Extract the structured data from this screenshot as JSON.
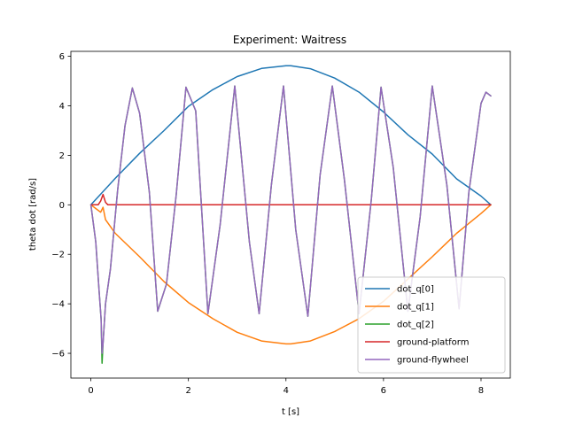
{
  "chart_data": {
    "type": "line",
    "title": "Experiment: Waitress",
    "xlabel": "t [s]",
    "ylabel": "theta dot [rad/s]",
    "xlim": [
      -0.41,
      8.6
    ],
    "ylim": [
      -7.0,
      6.2
    ],
    "xticks": [
      0,
      2,
      4,
      6,
      8
    ],
    "yticks": [
      -6,
      -4,
      -2,
      0,
      2,
      4,
      6
    ],
    "ytick_labels": [
      "−6",
      "−4",
      "−2",
      "0",
      "2",
      "4",
      "6"
    ],
    "grid": false,
    "legend": "lower-right",
    "series": [
      {
        "name": "dot_q[0]",
        "color": "#1f77b4",
        "x": [
          0,
          0.5,
          1.0,
          1.5,
          2.0,
          2.5,
          3.0,
          3.5,
          4.0,
          4.1,
          4.5,
          5.0,
          5.5,
          6.0,
          6.5,
          7.0,
          7.5,
          8.0,
          8.2
        ],
        "y": [
          0,
          1.07,
          2.08,
          3.0,
          3.98,
          4.65,
          5.18,
          5.51,
          5.62,
          5.62,
          5.5,
          5.12,
          4.55,
          3.75,
          2.83,
          2.05,
          1.05,
          0.35,
          0
        ]
      },
      {
        "name": "dot_q[1]",
        "color": "#ff7f0e",
        "x": [
          0,
          0.1,
          0.2,
          0.25,
          0.3,
          0.5,
          1.0,
          1.5,
          2.0,
          2.5,
          3.0,
          3.5,
          4.0,
          4.1,
          4.5,
          5.0,
          5.5,
          6.0,
          6.5,
          7.0,
          7.5,
          8.0,
          8.2
        ],
        "y": [
          0,
          -0.15,
          -0.3,
          -0.1,
          -0.6,
          -1.15,
          -2.1,
          -3.1,
          -3.95,
          -4.6,
          -5.15,
          -5.5,
          -5.62,
          -5.62,
          -5.5,
          -5.12,
          -4.6,
          -3.9,
          -3.0,
          -2.1,
          -1.15,
          -0.35,
          0
        ]
      },
      {
        "name": "dot_q[2]",
        "color": "#2ca02c",
        "x": [
          0,
          0.1,
          0.17,
          0.21,
          0.23,
          0.25,
          0.3,
          0.4,
          0.55,
          0.7,
          0.85,
          1.0,
          1.2,
          1.37,
          1.55,
          1.75,
          1.95,
          2.15,
          2.4,
          2.65,
          2.95,
          3.25,
          3.45,
          3.7,
          3.95,
          4.2,
          4.45,
          4.7,
          4.95,
          5.2,
          5.5,
          5.75,
          5.95,
          6.2,
          6.5,
          6.75,
          7.0,
          7.3,
          7.55,
          7.75,
          8.0,
          8.1,
          8.2
        ],
        "y": [
          0,
          -1.5,
          -3.5,
          -4.6,
          -6.4,
          -5.6,
          -4.0,
          -2.6,
          0.6,
          3.2,
          4.72,
          3.7,
          0.5,
          -4.3,
          -3.2,
          0.4,
          4.75,
          3.8,
          -4.4,
          -0.8,
          4.8,
          -1.5,
          -4.4,
          0.8,
          4.8,
          -1.0,
          -4.5,
          1.2,
          4.8,
          1.0,
          -4.4,
          0.2,
          4.75,
          1.5,
          -4.3,
          -0.5,
          4.8,
          0.8,
          -4.2,
          0.5,
          4.1,
          4.55,
          4.4
        ]
      },
      {
        "name": "ground-platform",
        "color": "#d62728",
        "x": [
          0,
          0.15,
          0.2,
          0.25,
          0.3,
          0.35,
          0.5,
          1.0,
          2.0,
          3.0,
          4.0,
          5.0,
          6.0,
          7.0,
          8.0,
          8.2
        ],
        "y": [
          0,
          0.0,
          0.15,
          0.42,
          0.1,
          0.0,
          0.0,
          0.0,
          0.0,
          0.0,
          0.0,
          0.0,
          0.0,
          0.0,
          0.0,
          0.0
        ]
      },
      {
        "name": "ground-flywheel",
        "color": "#9467bd",
        "x": [
          0,
          0.1,
          0.17,
          0.21,
          0.23,
          0.25,
          0.3,
          0.4,
          0.55,
          0.7,
          0.85,
          1.0,
          1.2,
          1.37,
          1.55,
          1.75,
          1.95,
          2.15,
          2.4,
          2.65,
          2.95,
          3.25,
          3.45,
          3.7,
          3.95,
          4.2,
          4.45,
          4.7,
          4.95,
          5.2,
          5.5,
          5.75,
          5.95,
          6.2,
          6.5,
          6.75,
          7.0,
          7.3,
          7.55,
          7.75,
          8.0,
          8.1,
          8.2
        ],
        "y": [
          0,
          -1.5,
          -3.5,
          -4.6,
          -6.0,
          -5.6,
          -4.0,
          -2.6,
          0.6,
          3.2,
          4.72,
          3.7,
          0.5,
          -4.3,
          -3.2,
          0.4,
          4.75,
          3.8,
          -4.4,
          -0.8,
          4.8,
          -1.5,
          -4.4,
          0.8,
          4.8,
          -1.0,
          -4.5,
          1.2,
          4.8,
          1.0,
          -4.4,
          0.2,
          4.75,
          1.5,
          -4.3,
          -0.5,
          4.8,
          0.8,
          -4.2,
          0.5,
          4.1,
          4.55,
          4.4
        ]
      }
    ]
  }
}
